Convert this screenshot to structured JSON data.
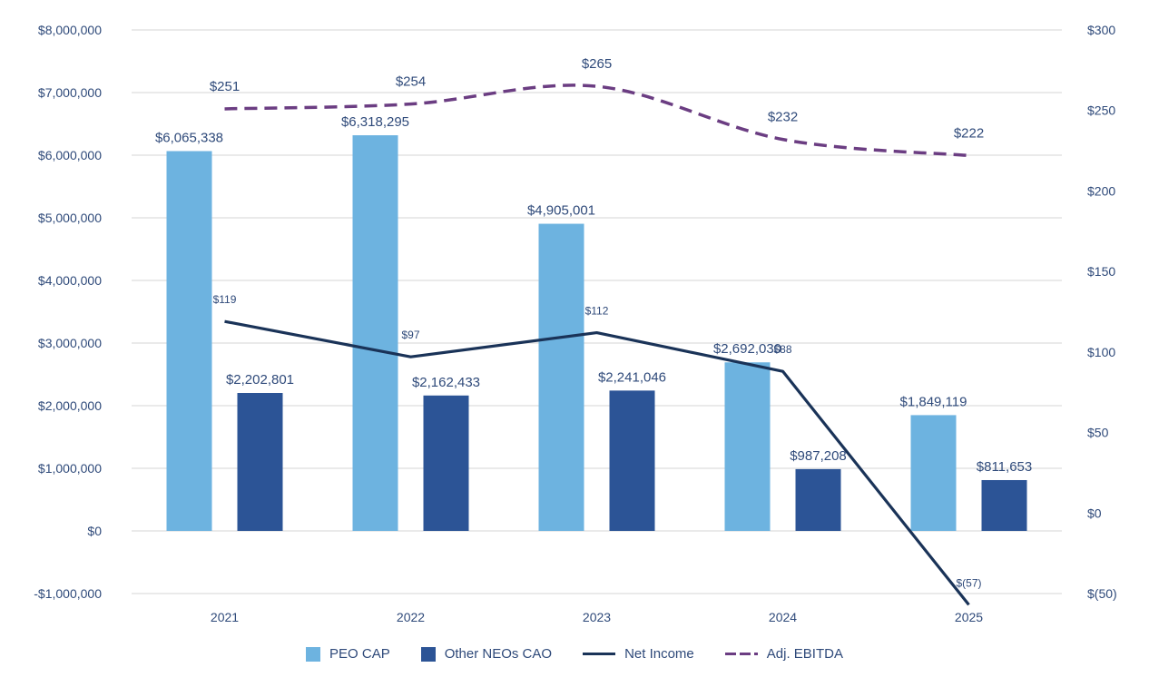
{
  "chart_data": {
    "type": "bar",
    "categories": [
      "2021",
      "2022",
      "2023",
      "2024",
      "2025"
    ],
    "bar_series": [
      {
        "name": "PEO CAP",
        "color": "#6db3e0",
        "values": [
          6065338,
          6318295,
          4905001,
          2692030,
          1849119
        ],
        "labels": [
          "$6,065,338",
          "$6,318,295",
          "$4,905,001",
          "$2,692,030",
          "$1,849,119"
        ]
      },
      {
        "name": "Other NEOs CAO",
        "color": "#2c5496",
        "values": [
          2202801,
          2162433,
          2241046,
          987208,
          811653
        ],
        "labels": [
          "$2,202,801",
          "$2,162,433",
          "$2,241,046",
          "$987,208",
          "$811,653"
        ]
      }
    ],
    "line_series": [
      {
        "name": "Net Income",
        "color": "#1a3358",
        "style": "solid",
        "values": [
          119,
          97,
          112,
          88,
          -57
        ],
        "labels": [
          "$119",
          "$97",
          "$112",
          "$88",
          "$(57)"
        ]
      },
      {
        "name": "Adj. EBITDA",
        "color": "#6b3d82",
        "style": "dashed",
        "values": [
          251,
          254,
          265,
          232,
          222
        ],
        "labels": [
          "$251",
          "$254",
          "$265",
          "$232",
          "$222"
        ]
      }
    ],
    "y_left": {
      "ylim": [
        -1000000,
        8000000
      ],
      "ticks": [
        -1000000,
        0,
        1000000,
        2000000,
        3000000,
        4000000,
        5000000,
        6000000,
        7000000,
        8000000
      ],
      "tick_labels": [
        "-$1,000,000",
        "$0",
        "$1,000,000",
        "$2,000,000",
        "$3,000,000",
        "$4,000,000",
        "$5,000,000",
        "$6,000,000",
        "$7,000,000",
        "$8,000,000"
      ]
    },
    "y_right": {
      "ylim": [
        -50,
        300
      ],
      "ticks": [
        -50,
        0,
        50,
        100,
        150,
        200,
        250,
        300
      ],
      "tick_labels": [
        "$(50)",
        "$0",
        "$50",
        "$100",
        "$150",
        "$200",
        "$250",
        "$300"
      ]
    },
    "grid": true,
    "legend_position": "bottom",
    "title": "",
    "xlabel": "",
    "ylabel": ""
  }
}
